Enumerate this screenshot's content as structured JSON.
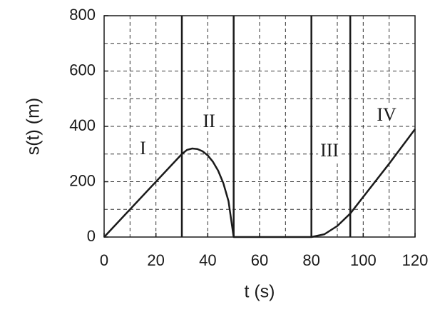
{
  "chart_data": {
    "type": "line",
    "x_label": "t (s)",
    "y_label": "s(t) (m)",
    "x": [
      0,
      30,
      32,
      34,
      36,
      38,
      40,
      42,
      44,
      46,
      48,
      50,
      60,
      70,
      80,
      85,
      90,
      95,
      100,
      110,
      120
    ],
    "series": [
      {
        "color": "#1a1a1a",
        "values": [
          0,
          300,
          315,
          320,
          318,
          310,
          295,
          272,
          240,
          195,
          130,
          0,
          0,
          0,
          0,
          10,
          40,
          85,
          145,
          265,
          390
        ]
      }
    ],
    "xlim": [
      0,
      120
    ],
    "ylim": [
      0,
      800
    ],
    "xticks": [
      0,
      20,
      40,
      60,
      80,
      100,
      120
    ],
    "yticks": [
      0,
      200,
      400,
      600,
      800
    ],
    "x_gridlines": [
      10,
      20,
      30,
      40,
      50,
      60,
      70,
      80,
      90,
      100,
      110
    ],
    "y_gridlines": [
      100,
      200,
      300,
      400,
      500,
      600,
      700
    ],
    "boundaries": [
      30,
      50,
      80,
      95
    ],
    "regions": [
      {
        "text": "I",
        "x": 15,
        "y": 315
      },
      {
        "text": "II",
        "x": 40.5,
        "y": 413
      },
      {
        "text": "III",
        "x": 87,
        "y": 307
      },
      {
        "text": "IV",
        "x": 109,
        "y": 436
      }
    ]
  }
}
